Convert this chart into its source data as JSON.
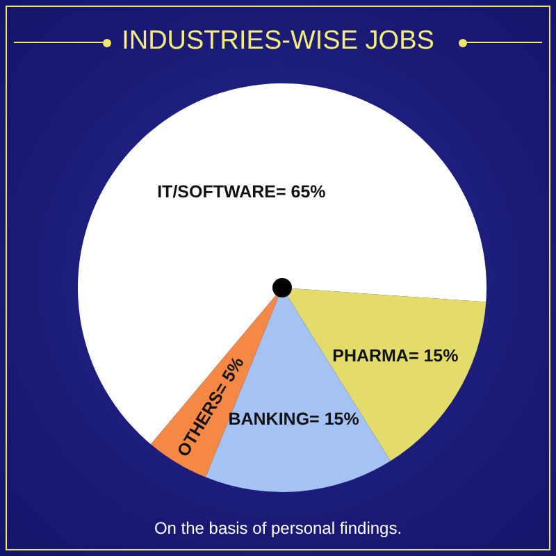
{
  "chart_data": {
    "type": "pie",
    "title": "INDUSTRIES-WISE JOBS",
    "categories": [
      "IT/SOFTWARE",
      "PHARMA",
      "BANKING",
      "OTHERS"
    ],
    "values": [
      65,
      15,
      15,
      5
    ],
    "colors": [
      "#ffffff",
      "#e3dc6b",
      "#a4c2f4",
      "#f68845"
    ],
    "value_labels": [
      "= 65%",
      "= 15%",
      "= 15%",
      "= 5%"
    ],
    "annotations": [
      "On the basis of personal findings."
    ]
  }
}
